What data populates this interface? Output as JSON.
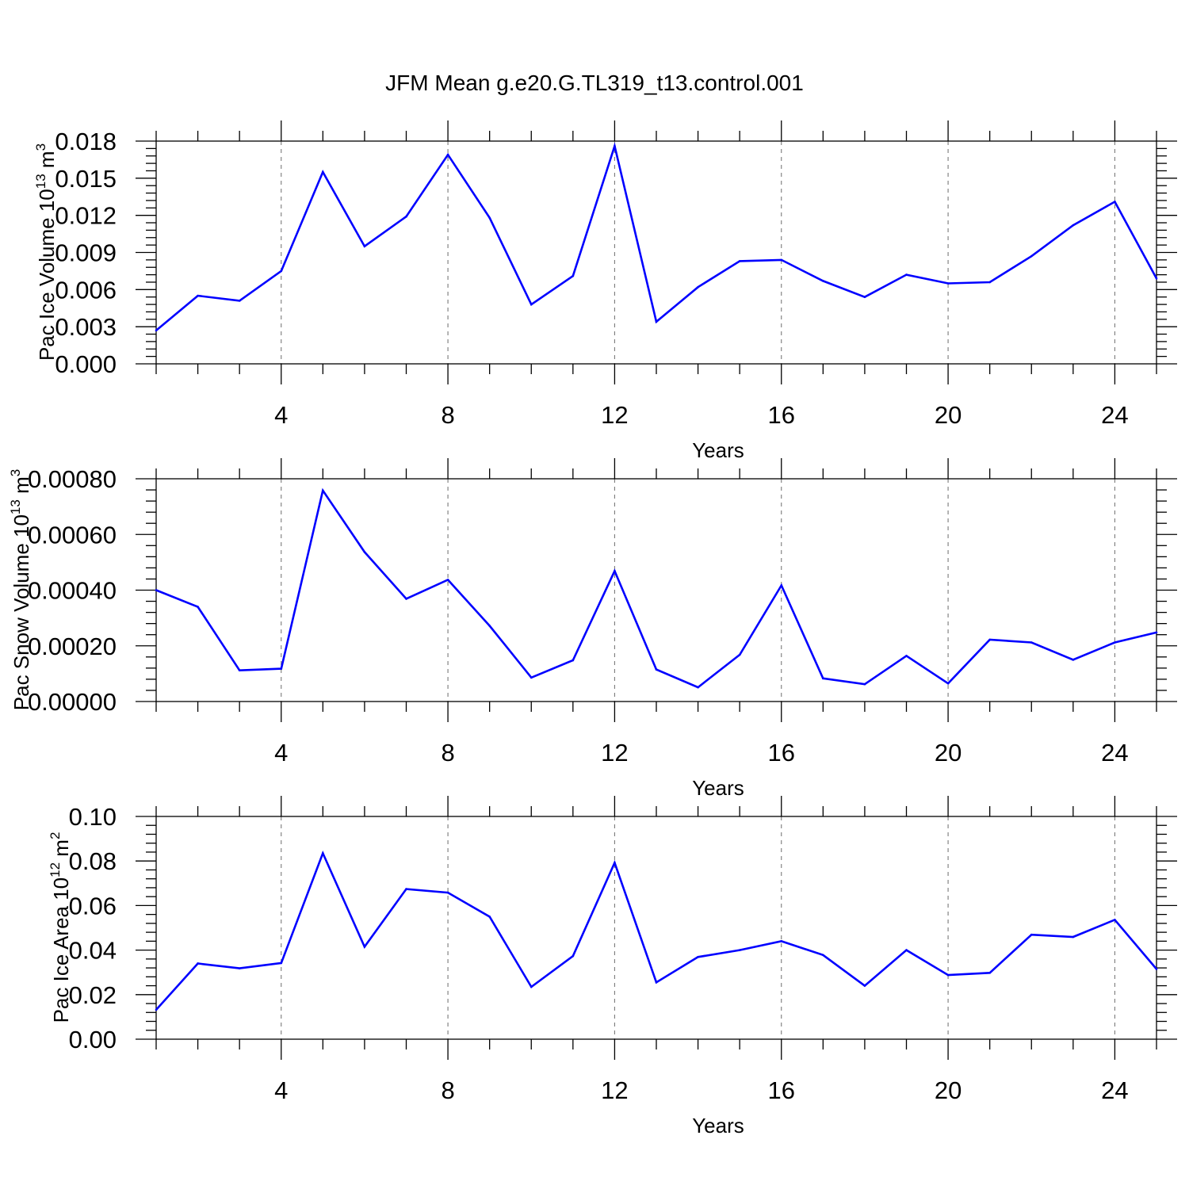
{
  "title": "JFM Mean g.e20.G.TL319_t13.control.001",
  "chart_data": [
    {
      "type": "line",
      "ylabel_main": "Pac Ice Volume 10",
      "ylabel_exp": "13",
      "ylabel_unit": "m",
      "ylabel_unit_exp": "3",
      "xlabel": "Years",
      "xlim": [
        1,
        25
      ],
      "ylim": [
        0,
        0.018
      ],
      "yticks": [
        "0.000",
        "0.003",
        "0.006",
        "0.009",
        "0.012",
        "0.015",
        "0.018"
      ],
      "xticks": [
        "4",
        "8",
        "12",
        "16",
        "20",
        "24"
      ],
      "grid": "x-dashed",
      "x": [
        1,
        2,
        3,
        4,
        5,
        6,
        7,
        8,
        9,
        10,
        11,
        12,
        13,
        14,
        15,
        16,
        17,
        18,
        19,
        20,
        21,
        22,
        23,
        24,
        25
      ],
      "values": [
        0.0027,
        0.0055,
        0.0051,
        0.0075,
        0.0155,
        0.0095,
        0.0119,
        0.0169,
        0.0118,
        0.0048,
        0.0071,
        0.0176,
        0.0034,
        0.0062,
        0.0083,
        0.0084,
        0.0067,
        0.0054,
        0.0072,
        0.0065,
        0.0066,
        0.0087,
        0.0112,
        0.0131,
        0.0069
      ]
    },
    {
      "type": "line",
      "ylabel_main": "Pac Snow Volume 10",
      "ylabel_exp": "13",
      "ylabel_unit": "m",
      "ylabel_unit_exp": "3",
      "xlabel": "Years",
      "xlim": [
        1,
        25
      ],
      "ylim": [
        0,
        0.0008
      ],
      "yticks": [
        "0.00000",
        "0.00020",
        "0.00040",
        "0.00060",
        "0.00080"
      ],
      "xticks": [
        "4",
        "8",
        "12",
        "16",
        "20",
        "24"
      ],
      "grid": "x-dashed",
      "x": [
        1,
        2,
        3,
        4,
        5,
        6,
        7,
        8,
        9,
        10,
        11,
        12,
        13,
        14,
        15,
        16,
        17,
        18,
        19,
        20,
        21,
        22,
        23,
        24,
        25
      ],
      "values": [
        0.0004,
        0.00034,
        0.000112,
        0.000118,
        0.000758,
        0.000537,
        0.000369,
        0.000437,
        0.000272,
        8.6e-05,
        0.000148,
        0.000469,
        0.000115,
        5.1e-05,
        0.000168,
        0.000417,
        8.3e-05,
        6.2e-05,
        0.000164,
        6.5e-05,
        0.000222,
        0.000212,
        0.00015,
        0.000212,
        0.000248
      ]
    },
    {
      "type": "line",
      "ylabel_main": "Pac Ice Area 10",
      "ylabel_exp": "12",
      "ylabel_unit": "m",
      "ylabel_unit_exp": "2",
      "xlabel": "Years",
      "xlim": [
        1,
        25
      ],
      "ylim": [
        0,
        0.1
      ],
      "yticks": [
        "0.00",
        "0.02",
        "0.04",
        "0.06",
        "0.08",
        "0.10"
      ],
      "xticks": [
        "4",
        "8",
        "12",
        "16",
        "20",
        "24"
      ],
      "grid": "x-dashed",
      "x": [
        1,
        2,
        3,
        4,
        5,
        6,
        7,
        8,
        9,
        10,
        11,
        12,
        13,
        14,
        15,
        16,
        17,
        18,
        19,
        20,
        21,
        22,
        23,
        24,
        25
      ],
      "values": [
        0.0132,
        0.034,
        0.0318,
        0.0342,
        0.0835,
        0.0415,
        0.0674,
        0.0658,
        0.055,
        0.0235,
        0.0373,
        0.0792,
        0.0255,
        0.0369,
        0.04,
        0.044,
        0.0378,
        0.024,
        0.04,
        0.0288,
        0.0298,
        0.0469,
        0.0459,
        0.0536,
        0.0315
      ]
    }
  ],
  "colors": {
    "series": "#0000ff",
    "frame": "#000000",
    "grid": "#7a7a7a"
  }
}
